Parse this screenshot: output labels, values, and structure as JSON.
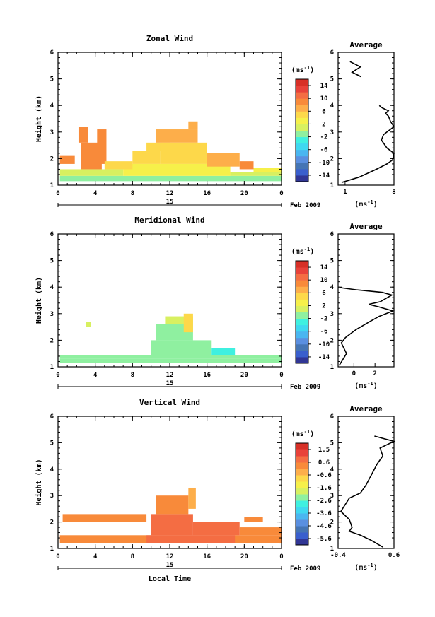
{
  "figure": {
    "date_label": "Feb 2009",
    "day_label": "15",
    "xlabel": "Local Time"
  },
  "chart_data": [
    {
      "type": "heatmap",
      "title": "Zonal Wind",
      "ylabel": "Height (km)",
      "xlim": [
        0,
        24
      ],
      "ylim": [
        1,
        6
      ],
      "x_ticks": [
        "0",
        "4",
        "8",
        "12",
        "16",
        "20",
        "0"
      ],
      "y_ticks": [
        "1",
        "2",
        "3",
        "4",
        "5",
        "6"
      ],
      "colorbar": {
        "unit": "(ms-1)",
        "ticks": [
          "14",
          "10",
          "6",
          "2",
          "-2",
          "-6",
          "-10",
          "-14"
        ],
        "min": -16,
        "max": 16
      },
      "cells": [
        {
          "x0": 0.2,
          "x1": 24,
          "y0": 1.15,
          "y1": 1.35,
          "v": -1
        },
        {
          "x0": 0.2,
          "x1": 7,
          "y0": 1.35,
          "y1": 1.6,
          "v": 0
        },
        {
          "x0": 7,
          "x1": 18.5,
          "y0": 1.35,
          "y1": 1.8,
          "v": 3
        },
        {
          "x0": 18.5,
          "x1": 24,
          "y0": 1.35,
          "y1": 1.5,
          "v": 0
        },
        {
          "x0": 0.2,
          "x1": 1.8,
          "y0": 1.8,
          "y1": 2.1,
          "v": 9
        },
        {
          "x0": 2.5,
          "x1": 4.7,
          "y0": 1.6,
          "y1": 2.6,
          "v": 9
        },
        {
          "x0": 2.2,
          "x1": 3.2,
          "y0": 2.6,
          "y1": 3.2,
          "v": 8
        },
        {
          "x0": 4.2,
          "x1": 5.2,
          "y0": 1.8,
          "y1": 3.1,
          "v": 8
        },
        {
          "x0": 5,
          "x1": 8,
          "y0": 1.6,
          "y1": 1.9,
          "v": 4
        },
        {
          "x0": 8,
          "x1": 11,
          "y0": 1.8,
          "y1": 2.3,
          "v": 5
        },
        {
          "x0": 9.5,
          "x1": 12,
          "y0": 2.3,
          "y1": 2.6,
          "v": 5
        },
        {
          "x0": 10.5,
          "x1": 15,
          "y0": 2.6,
          "y1": 3.1,
          "v": 6
        },
        {
          "x0": 11,
          "x1": 16,
          "y0": 1.8,
          "y1": 2.6,
          "v": 5
        },
        {
          "x0": 14,
          "x1": 15,
          "y0": 3.1,
          "y1": 3.4,
          "v": 6
        },
        {
          "x0": 16,
          "x1": 19.5,
          "y0": 1.7,
          "y1": 2.2,
          "v": 7
        },
        {
          "x0": 19.5,
          "x1": 21,
          "y0": 1.6,
          "y1": 1.9,
          "v": 8
        },
        {
          "x0": 21,
          "x1": 24,
          "y0": 1.5,
          "y1": 1.65,
          "v": 2
        }
      ]
    },
    {
      "type": "heatmap",
      "title": "Meridional Wind",
      "ylabel": "Height (km)",
      "xlim": [
        0,
        24
      ],
      "ylim": [
        1,
        6
      ],
      "x_ticks": [
        "0",
        "4",
        "8",
        "12",
        "16",
        "20",
        "0"
      ],
      "y_ticks": [
        "1",
        "2",
        "3",
        "4",
        "5",
        "6"
      ],
      "colorbar": {
        "unit": "(ms-1)",
        "ticks": [
          "14",
          "10",
          "6",
          "2",
          "-2",
          "-6",
          "-10",
          "-14"
        ],
        "min": -16,
        "max": 16
      },
      "cells": [
        {
          "x0": 0.2,
          "x1": 24,
          "y0": 1.15,
          "y1": 1.3,
          "v": -1
        },
        {
          "x0": 0.2,
          "x1": 24,
          "y0": 1.3,
          "y1": 1.45,
          "v": -2
        },
        {
          "x0": 3,
          "x1": 3.5,
          "y0": 2.5,
          "y1": 2.7,
          "v": 0
        },
        {
          "x0": 10,
          "x1": 16.5,
          "y0": 1.45,
          "y1": 2.0,
          "v": -2
        },
        {
          "x0": 10.5,
          "x1": 14.5,
          "y0": 2.0,
          "y1": 2.6,
          "v": -1
        },
        {
          "x0": 11.5,
          "x1": 14.5,
          "y0": 2.6,
          "y1": 2.9,
          "v": 0
        },
        {
          "x0": 13.5,
          "x1": 14.5,
          "y0": 2.3,
          "y1": 3.0,
          "v": 4
        },
        {
          "x0": 16.5,
          "x1": 19,
          "y0": 1.45,
          "y1": 1.7,
          "v": -3
        }
      ]
    },
    {
      "type": "heatmap",
      "title": "Vertical Wind",
      "ylabel": "Height (km)",
      "xlim": [
        0,
        24
      ],
      "ylim": [
        1,
        6
      ],
      "x_ticks": [
        "0",
        "4",
        "8",
        "12",
        "16",
        "20",
        "0"
      ],
      "y_ticks": [
        "1",
        "2",
        "3",
        "4",
        "5",
        "6"
      ],
      "colorbar": {
        "unit": "(ms-1)",
        "ticks": [
          "1.5",
          "0.6",
          "-0.6",
          "-1.6",
          "-2.6",
          "-3.6",
          "-4.6",
          "-5.6"
        ],
        "min": -6,
        "max": 2
      },
      "cells": [
        {
          "x0": 0.2,
          "x1": 24,
          "y0": 1.2,
          "y1": 1.5,
          "v": 0.2
        },
        {
          "x0": 0.5,
          "x1": 9.5,
          "y0": 2.0,
          "y1": 2.3,
          "v": 0.1
        },
        {
          "x0": 9.5,
          "x1": 19,
          "y0": 1.2,
          "y1": 1.5,
          "v": 0.7
        },
        {
          "x0": 10,
          "x1": 14.5,
          "y0": 1.5,
          "y1": 2.3,
          "v": 0.6
        },
        {
          "x0": 10.5,
          "x1": 14,
          "y0": 2.3,
          "y1": 3.0,
          "v": 0.1
        },
        {
          "x0": 14,
          "x1": 14.8,
          "y0": 2.5,
          "y1": 3.3,
          "v": -0.4
        },
        {
          "x0": 14.5,
          "x1": 19.5,
          "y0": 1.5,
          "y1": 2.0,
          "v": 0.8
        },
        {
          "x0": 19.5,
          "x1": 24,
          "y0": 1.5,
          "y1": 1.8,
          "v": 0.1
        },
        {
          "x0": 20,
          "x1": 22,
          "y0": 2.0,
          "y1": 2.2,
          "v": 0.0
        }
      ]
    },
    {
      "type": "line",
      "title": "Average",
      "xlabel": "(ms-1)",
      "xlim": [
        0,
        8
      ],
      "ylim": [
        1,
        6
      ],
      "x_ticks": [
        "1",
        "8"
      ],
      "x_tick_values": [
        1,
        8
      ],
      "y_ticks": [
        "1",
        "2",
        "3",
        "4",
        "5",
        "6"
      ],
      "segments": [
        {
          "x": [
            0.5,
            3,
            5.5,
            7,
            7.8,
            8,
            7,
            6.2,
            6.5,
            7,
            8,
            7.5,
            7.2,
            6.8,
            7.2,
            6.4,
            6.1,
            5.9
          ],
          "y": [
            1.1,
            1.3,
            1.6,
            1.8,
            1.95,
            2.2,
            2.4,
            2.7,
            2.9,
            3.0,
            3.2,
            3.4,
            3.6,
            3.7,
            3.8,
            3.9,
            3.95,
            4.0
          ]
        },
        {
          "x": [
            1.7,
            3.2,
            2.0,
            3.3
          ],
          "y": [
            5.65,
            5.45,
            5.25,
            5.08
          ]
        }
      ]
    },
    {
      "type": "line",
      "title": "Average",
      "xlabel": "(ms-1)",
      "xlim": [
        -1.5,
        3.8
      ],
      "ylim": [
        1,
        6
      ],
      "x_ticks": [
        "0",
        "2"
      ],
      "x_tick_values": [
        0,
        2
      ],
      "y_ticks": [
        "1",
        "2",
        "3",
        "4",
        "5",
        "6"
      ],
      "segments": [
        {
          "x": [
            -1.4,
            -0.7,
            -1.2,
            -0.8,
            0.2,
            1.5,
            2.4,
            3.7,
            2.4,
            1.4,
            2.5,
            3.6,
            2.7,
            0.2,
            -1.3
          ],
          "y": [
            1.05,
            1.5,
            1.9,
            2.1,
            2.4,
            2.7,
            2.9,
            3.1,
            3.25,
            3.35,
            3.45,
            3.7,
            3.8,
            3.9,
            3.98
          ]
        }
      ]
    },
    {
      "type": "line",
      "title": "Average",
      "xlabel": "(ms-1)",
      "xlim": [
        -0.4,
        0.6
      ],
      "ylim": [
        1,
        6
      ],
      "x_ticks": [
        "-0.4",
        "0.6"
      ],
      "x_tick_values": [
        -0.4,
        0.6
      ],
      "y_ticks": [
        "1",
        "2",
        "3",
        "4",
        "5",
        "6"
      ],
      "segments": [
        {
          "x": [
            0.4,
            0.2,
            0.0,
            -0.2,
            -0.15,
            -0.2,
            -0.35,
            -0.2,
            0.0,
            0.1,
            0.2,
            0.3,
            0.4,
            0.35,
            0.6,
            0.25
          ],
          "y": [
            1.05,
            1.3,
            1.5,
            1.65,
            1.8,
            2.1,
            2.4,
            2.9,
            3.1,
            3.4,
            3.8,
            4.2,
            4.5,
            4.8,
            5.05,
            5.25
          ]
        }
      ]
    }
  ]
}
